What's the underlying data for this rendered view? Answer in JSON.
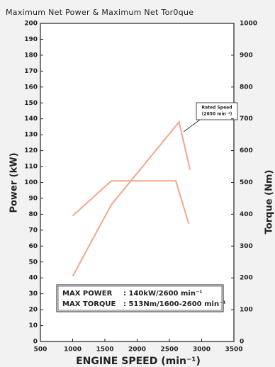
{
  "chart_data": {
    "type": "line",
    "title": "Maximum Net Power & Maximum Net Tor0que",
    "x_label": "ENGINE SPEED (min⁻¹)",
    "y_label": "Power (kW)",
    "y2_label": "Torque (Nm)",
    "xlim": [
      500,
      3500
    ],
    "xticks": [
      500,
      1000,
      1500,
      2000,
      2500,
      3000,
      3500
    ],
    "ylim": [
      0,
      200
    ],
    "yticks": [
      0,
      10,
      20,
      30,
      40,
      50,
      60,
      70,
      80,
      90,
      100,
      110,
      120,
      130,
      140,
      150,
      160,
      170,
      180,
      190,
      200
    ],
    "y2lim": [
      0,
      1000
    ],
    "y2ticks": [
      0,
      100,
      200,
      300,
      400,
      500,
      600,
      700,
      800,
      900,
      1000
    ],
    "series": [
      {
        "name": "Power",
        "color": "#f6a58c",
        "x": [
          1000,
          1600,
          2650,
          2820
        ],
        "values": [
          41,
          86,
          138,
          108
        ]
      },
      {
        "name": "Torque",
        "color": "#f6a58c",
        "axis": "y2",
        "x": [
          1000,
          1600,
          2600,
          2800
        ],
        "values": [
          395,
          505,
          505,
          370
        ]
      }
    ],
    "annotation": {
      "lines": [
        "Rated Speed",
        "(2650 min⁻¹)"
      ]
    },
    "spec_box": [
      [
        "MAX POWER",
        ": 140kW/2600 min⁻¹"
      ],
      [
        "MAX TORQUE",
        ": 513Nm/1600-2600 min⁻¹"
      ]
    ]
  }
}
